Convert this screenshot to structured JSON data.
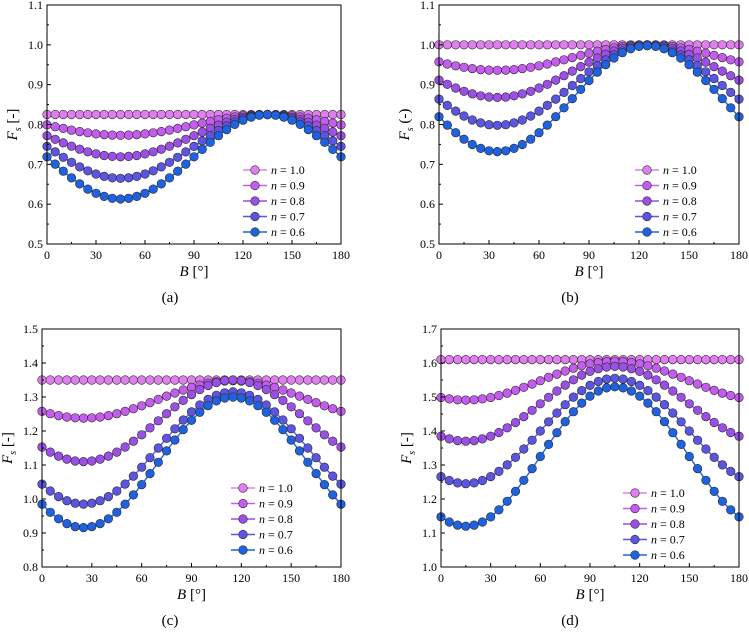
{
  "figure": {
    "legend_prefix": "n",
    "legend_eq": " = ",
    "series_colors": [
      "#e07ef0",
      "#c45cf0",
      "#9b4fe6",
      "#5b55e2",
      "#1f62e0"
    ]
  },
  "chart_data": [
    {
      "type": "line",
      "caption": "(a)",
      "xlabel": "B [°]",
      "ylabel_main": "F",
      "ylabel_sub": "s",
      "ylabel_unit": "[-]",
      "xlim": [
        0,
        180
      ],
      "ylim": [
        0.5,
        1.1
      ],
      "xticks": [
        0,
        30,
        60,
        90,
        120,
        150,
        180
      ],
      "xtick_labels": [
        "0",
        "30",
        "60",
        "90",
        "120",
        "150",
        "180"
      ],
      "yticks": [
        0.5,
        0.6,
        0.7,
        0.8,
        0.9,
        1.0,
        1.1
      ],
      "ytick_labels": [
        "0.5",
        "0.6",
        "0.7",
        "0.8",
        "0.9",
        "1.0",
        "1.1"
      ],
      "legend_position": "bottom-right",
      "series": [
        {
          "name": "1.0",
          "mean": 0.825,
          "amp": 0.0,
          "center": 45
        },
        {
          "name": "0.9",
          "mean": 0.799,
          "amp": 0.026,
          "center": 45
        },
        {
          "name": "0.8",
          "mean": 0.772,
          "amp": 0.053,
          "center": 45
        },
        {
          "name": "0.7",
          "mean": 0.745,
          "amp": 0.08,
          "center": 45
        },
        {
          "name": "0.6",
          "mean": 0.719,
          "amp": 0.106,
          "center": 45
        }
      ]
    },
    {
      "type": "line",
      "caption": "(b)",
      "xlabel": "B [°]",
      "ylabel_main": "F",
      "ylabel_sub": "s",
      "ylabel_unit": "(-)",
      "xlim": [
        0,
        180
      ],
      "ylim": [
        0.5,
        1.1
      ],
      "xticks": [
        0,
        30,
        60,
        90,
        120,
        150,
        180
      ],
      "xtick_labels": [
        "0",
        "30",
        "60",
        "90",
        "120",
        "150",
        "180"
      ],
      "yticks": [
        0.5,
        0.6,
        0.7,
        0.8,
        0.9,
        1.0,
        1.1
      ],
      "ytick_labels": [
        "0.5",
        "0.6",
        "0.7",
        "0.8",
        "0.9",
        "1.0",
        "1.1"
      ],
      "legend_position": "bottom-right",
      "series": [
        {
          "name": "1.0",
          "mean": 1.0,
          "amp": 0.0,
          "center": 35
        },
        {
          "name": "0.9",
          "mean": 0.968,
          "amp": 0.032,
          "center": 35
        },
        {
          "name": "0.8",
          "mean": 0.934,
          "amp": 0.066,
          "center": 35
        },
        {
          "name": "0.7",
          "mean": 0.898,
          "amp": 0.1,
          "center": 35
        },
        {
          "name": "0.6",
          "mean": 0.865,
          "amp": 0.133,
          "center": 35
        }
      ]
    },
    {
      "type": "line",
      "caption": "(c)",
      "xlabel": "B [°]",
      "ylabel_main": "F",
      "ylabel_sub": "s",
      "ylabel_unit": "[-]",
      "xlim": [
        0,
        180
      ],
      "ylim": [
        0.8,
        1.5
      ],
      "xticks": [
        0,
        30,
        60,
        90,
        120,
        150,
        180
      ],
      "xtick_labels": [
        "0",
        "30",
        "60",
        "90",
        "120",
        "150",
        "180"
      ],
      "yticks": [
        0.8,
        0.9,
        1.0,
        1.1,
        1.2,
        1.3,
        1.4,
        1.5
      ],
      "ytick_labels": [
        "0.8",
        "0.9",
        "1.0",
        "1.1",
        "1.2",
        "1.3",
        "1.4",
        "1.5"
      ],
      "legend_position": "middle-left",
      "series": [
        {
          "name": "1.0",
          "mean": 1.35,
          "amp": 0.0,
          "center": 25
        },
        {
          "name": "0.9",
          "mean": 1.293,
          "amp": 0.055,
          "center": 25
        },
        {
          "name": "0.8",
          "mean": 1.23,
          "amp": 0.12,
          "center": 25
        },
        {
          "name": "0.7",
          "mean": 1.15,
          "amp": 0.165,
          "center": 25
        },
        {
          "name": "0.6",
          "mean": 1.108,
          "amp": 0.192,
          "center": 25
        }
      ]
    },
    {
      "type": "line",
      "caption": "(d)",
      "xlabel": "B [°]",
      "ylabel_main": "F",
      "ylabel_sub": "s",
      "ylabel_unit": "[-]",
      "xlim": [
        0,
        180
      ],
      "ylim": [
        1.0,
        1.7
      ],
      "xticks": [
        0,
        30,
        60,
        90,
        120,
        150,
        180
      ],
      "xtick_labels": [
        "0",
        "30",
        "60",
        "90",
        "120",
        "150",
        "180"
      ],
      "yticks": [
        1.0,
        1.1,
        1.2,
        1.3,
        1.4,
        1.5,
        1.6,
        1.7
      ],
      "ytick_labels": [
        "1.0",
        "1.1",
        "1.2",
        "1.3",
        "1.4",
        "1.5",
        "1.6",
        "1.7"
      ],
      "legend_position": "bottom-center",
      "series": [
        {
          "name": "1.0",
          "mean": 1.61,
          "amp": 0.0,
          "center": 15
        },
        {
          "name": "0.9",
          "mean": 1.548,
          "amp": 0.057,
          "center": 15
        },
        {
          "name": "0.8",
          "mean": 1.48,
          "amp": 0.11,
          "center": 15
        },
        {
          "name": "0.7",
          "mean": 1.4,
          "amp": 0.155,
          "center": 15
        },
        {
          "name": "0.6",
          "mean": 1.325,
          "amp": 0.205,
          "center": 15
        }
      ]
    }
  ]
}
